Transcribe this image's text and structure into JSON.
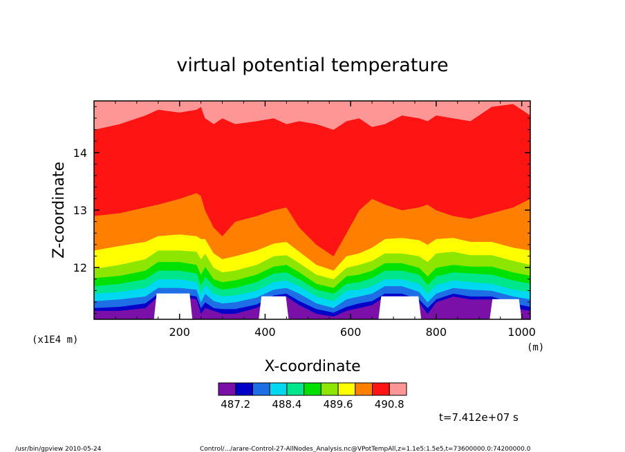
{
  "chart_data": {
    "type": "heatmap",
    "title": "virtual potential temperature",
    "xlabel": "X-coordinate",
    "ylabel": "Z-coordinate",
    "x_units": "(m)",
    "y_scale_note": "(x1E4 m)",
    "xlim": [
      0,
      1020
    ],
    "ylim": [
      11.1,
      14.9
    ],
    "x_ticks": [
      200,
      400,
      600,
      800,
      1000
    ],
    "x_tick_labels": [
      "200",
      "400",
      "600",
      "800",
      "1000"
    ],
    "y_ticks": [
      12,
      13,
      14
    ],
    "y_tick_labels": [
      "12",
      "13",
      "14"
    ],
    "colorbar": {
      "colors": [
        "#7a10a8",
        "#0000c8",
        "#1e6ee6",
        "#00d7f0",
        "#00e68c",
        "#00e100",
        "#8ce600",
        "#ffff00",
        "#ff8000",
        "#ff1414",
        "#ff9696"
      ],
      "tick_labels": [
        "487.2",
        "488.4",
        "489.6",
        "490.8"
      ],
      "tick_index": [
        1,
        4,
        7,
        10
      ]
    },
    "x_samples": [
      0,
      60,
      120,
      150,
      200,
      240,
      250,
      260,
      280,
      300,
      330,
      380,
      420,
      450,
      480,
      520,
      560,
      590,
      620,
      650,
      680,
      720,
      760,
      780,
      800,
      840,
      880,
      930,
      980,
      1020
    ],
    "boundary_heights": [
      [
        11.05,
        11.05,
        11.05,
        11.05,
        11.05,
        11.05,
        11.05,
        11.05,
        11.05,
        11.05,
        11.05,
        11.05,
        11.05,
        11.05,
        11.05,
        11.05,
        11.05,
        11.05,
        11.05,
        11.05,
        11.05,
        11.05,
        11.05,
        11.05,
        11.05,
        11.05,
        11.05,
        11.05,
        11.05,
        11.05
      ],
      [
        11.25,
        11.25,
        11.3,
        11.5,
        11.5,
        11.45,
        11.2,
        11.3,
        11.25,
        11.2,
        11.2,
        11.3,
        11.45,
        11.5,
        11.35,
        11.2,
        11.15,
        11.25,
        11.3,
        11.35,
        11.5,
        11.5,
        11.4,
        11.2,
        11.4,
        11.5,
        11.45,
        11.45,
        11.3,
        11.25
      ],
      [
        11.3,
        11.32,
        11.38,
        11.55,
        11.55,
        11.5,
        11.3,
        11.4,
        11.3,
        11.28,
        11.28,
        11.36,
        11.52,
        11.55,
        11.42,
        11.28,
        11.22,
        11.32,
        11.38,
        11.42,
        11.55,
        11.55,
        11.45,
        11.3,
        11.45,
        11.55,
        11.5,
        11.5,
        11.38,
        11.32
      ],
      [
        11.42,
        11.45,
        11.5,
        11.65,
        11.65,
        11.62,
        11.4,
        11.55,
        11.42,
        11.38,
        11.4,
        11.48,
        11.62,
        11.65,
        11.55,
        11.38,
        11.3,
        11.45,
        11.5,
        11.55,
        11.68,
        11.68,
        11.58,
        11.4,
        11.55,
        11.65,
        11.62,
        11.6,
        11.5,
        11.45
      ],
      [
        11.55,
        11.58,
        11.65,
        11.8,
        11.8,
        11.75,
        11.55,
        11.7,
        11.55,
        11.5,
        11.52,
        11.6,
        11.75,
        11.78,
        11.68,
        11.5,
        11.42,
        11.6,
        11.62,
        11.68,
        11.8,
        11.8,
        11.72,
        11.55,
        11.7,
        11.78,
        11.75,
        11.72,
        11.62,
        11.58
      ],
      [
        11.68,
        11.72,
        11.8,
        11.95,
        11.95,
        11.9,
        11.7,
        11.85,
        11.68,
        11.62,
        11.65,
        11.75,
        11.9,
        11.92,
        11.8,
        11.62,
        11.55,
        11.72,
        11.75,
        11.82,
        11.95,
        11.95,
        11.88,
        11.7,
        11.85,
        11.92,
        11.9,
        11.88,
        11.78,
        11.72
      ],
      [
        11.82,
        11.86,
        11.95,
        12.1,
        12.1,
        12.05,
        11.88,
        12.02,
        11.8,
        11.75,
        11.78,
        11.88,
        12.02,
        12.05,
        11.92,
        11.72,
        11.65,
        11.85,
        11.88,
        11.95,
        12.08,
        12.08,
        12.0,
        11.85,
        12.0,
        12.05,
        12.02,
        12.02,
        11.92,
        11.86
      ],
      [
        11.98,
        12.05,
        12.15,
        12.3,
        12.3,
        12.28,
        12.15,
        12.25,
        12.0,
        11.92,
        11.95,
        12.05,
        12.2,
        12.22,
        12.08,
        11.88,
        11.8,
        12.0,
        12.05,
        12.12,
        12.25,
        12.25,
        12.2,
        12.1,
        12.25,
        12.28,
        12.22,
        12.22,
        12.12,
        12.05
      ],
      [
        12.3,
        12.38,
        12.45,
        12.55,
        12.58,
        12.55,
        12.5,
        12.5,
        12.25,
        12.15,
        12.2,
        12.3,
        12.42,
        12.45,
        12.28,
        12.05,
        11.95,
        12.2,
        12.25,
        12.35,
        12.5,
        12.52,
        12.48,
        12.4,
        12.5,
        12.52,
        12.45,
        12.45,
        12.35,
        12.3
      ],
      [
        12.9,
        12.95,
        13.05,
        13.1,
        13.2,
        13.3,
        13.25,
        13.0,
        12.7,
        12.55,
        12.8,
        12.9,
        13.0,
        13.05,
        12.7,
        12.4,
        12.2,
        12.6,
        13.0,
        13.2,
        13.1,
        13.0,
        13.05,
        13.1,
        13.0,
        12.9,
        12.85,
        12.95,
        13.05,
        13.2
      ],
      [
        14.4,
        14.5,
        14.65,
        14.75,
        14.7,
        14.75,
        14.8,
        14.6,
        14.5,
        14.6,
        14.5,
        14.55,
        14.6,
        14.5,
        14.55,
        14.5,
        14.4,
        14.55,
        14.6,
        14.45,
        14.5,
        14.65,
        14.6,
        14.55,
        14.65,
        14.6,
        14.55,
        14.8,
        14.85,
        14.65
      ],
      [
        14.95,
        14.95,
        14.95,
        14.95,
        14.95,
        14.95,
        14.95,
        14.95,
        14.95,
        14.95,
        14.95,
        14.95,
        14.95,
        14.95,
        14.95,
        14.95,
        14.95,
        14.95,
        14.95,
        14.95,
        14.95,
        14.95,
        14.95,
        14.95,
        14.95,
        14.95,
        14.95,
        14.95,
        14.95,
        14.95
      ]
    ],
    "white_regions": [
      {
        "x": [
          140,
          230
        ],
        "top_z": 11.55
      },
      {
        "x": [
          385,
          455
        ],
        "top_z": 11.5
      },
      {
        "x": [
          665,
          765
        ],
        "top_z": 11.5
      },
      {
        "x": [
          925,
          1000
        ],
        "top_z": 11.45
      }
    ]
  },
  "time_label": "t=7.412e+07 s",
  "footer": {
    "left": "/usr/bin/gpview  2010-05-24",
    "right": "Control/.../arare-Control-27-AllNodes_Analysis.nc@VPotTempAll,z=1.1e5:1.5e5,t=73600000.0:74200000.0"
  }
}
